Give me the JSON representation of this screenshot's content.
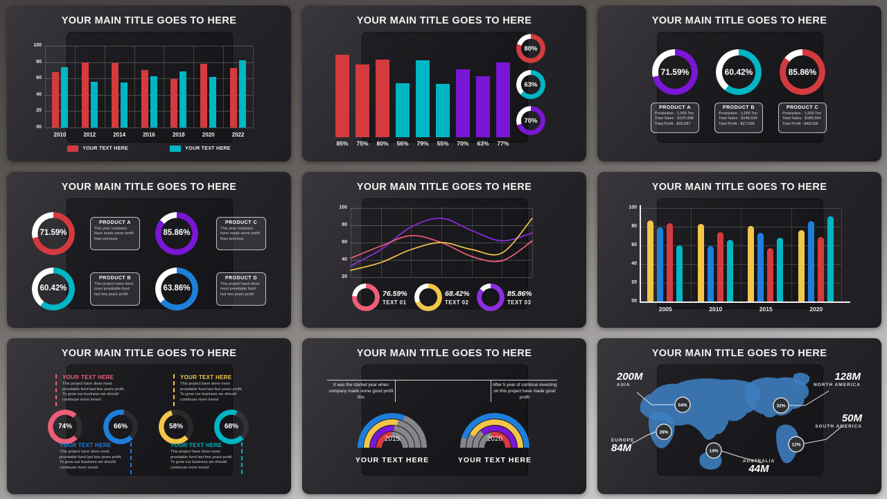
{
  "palette": {
    "red": "#d53a3e",
    "teal": "#00b6c4",
    "purple": "#7a16d6",
    "purple_line": "#8b2fe0",
    "blue": "#1e7fdb",
    "yellow": "#f3c64a",
    "pink": "#ef5e78",
    "gray": "#85868a",
    "white": "#ffffff",
    "map_blue": "#3d7ec0"
  },
  "slides": [
    {
      "name": "grouped-bar-chart",
      "title": "YOUR MAIN TITLE GOES TO HERE",
      "chart_data": {
        "type": "bar",
        "categories": [
          "2010",
          "2012",
          "2014",
          "2016",
          "2018",
          "2020",
          "2022"
        ],
        "yticks": [
          "100",
          "80",
          "60",
          "40",
          "20",
          "00"
        ],
        "ylim": [
          0,
          100
        ],
        "grid": true,
        "legend_position": "bottom",
        "series": [
          {
            "name": "YOUR TEXT HERE",
            "color": "#d53a3e",
            "values": [
              68,
              80,
              79,
              70,
              59,
              78,
              73
            ]
          },
          {
            "name": "YOUR TEXT HERE",
            "color": "#00b6c4",
            "values": [
              74,
              56,
              55,
              63,
              69,
              62,
              82
            ]
          }
        ]
      }
    },
    {
      "name": "percent-bar-chart",
      "title": "YOUR MAIN TITLE GOES TO HERE",
      "chart_data": {
        "type": "bar",
        "labels": [
          "85%",
          "75%",
          "80%",
          "56%",
          "79%",
          "55%",
          "70%",
          "63%",
          "77%"
        ],
        "values": [
          85,
          75,
          80,
          56,
          79,
          55,
          70,
          63,
          77
        ],
        "colors": [
          "#d53a3e",
          "#d53a3e",
          "#d53a3e",
          "#00b6c4",
          "#00b6c4",
          "#00b6c4",
          "#7a16d6",
          "#7a16d6",
          "#7a16d6"
        ]
      },
      "donuts": [
        {
          "label": "80%",
          "value": 80,
          "color": "#d53a3e"
        },
        {
          "label": "63%",
          "value": 63,
          "color": "#00b6c4"
        },
        {
          "label": "70%",
          "value": 70,
          "color": "#7a16d6"
        }
      ]
    },
    {
      "name": "product-donut-rings",
      "title": "YOUR MAIN TITLE GOES TO HERE",
      "donuts": [
        {
          "label": "71.59%",
          "value": 71.59,
          "color": "#7a16d6"
        },
        {
          "label": "60.42%",
          "value": 60.42,
          "color": "#00b6c4"
        },
        {
          "label": "85.86%",
          "value": 85.86,
          "color": "#d53a3e"
        }
      ],
      "products": [
        {
          "name": "PRODUCT A",
          "lines": [
            "Production - 1,000 Ton",
            "Total Sales - $125,908",
            "Total Profit - $35,987"
          ]
        },
        {
          "name": "PRODUCT B",
          "lines": [
            "Production - 1,000 Ton",
            "Total Sales - $148,534",
            "Total Profit - $27,598"
          ]
        },
        {
          "name": "PRODUCT C",
          "lines": [
            "Production - 1,000 Ton",
            "Total Sales - $189,564",
            "Total Profit - $48,568"
          ]
        }
      ]
    },
    {
      "name": "four-donut-products",
      "title": "YOUR MAIN TITLE GOES TO HERE",
      "items": [
        {
          "label": "71.59%",
          "value": 71.59,
          "color": "#d53a3e",
          "product": "PRODUCT A",
          "text": "This year company have made some profit than previous"
        },
        {
          "label": "85.86%",
          "value": 85.86,
          "color": "#7a16d6",
          "product": "PRODUCT C",
          "text": "This year company have made some profit than previous"
        },
        {
          "label": "60.42%",
          "value": 60.42,
          "color": "#00b6c4",
          "product": "PRODUCT B",
          "text": "This project have done most proeitable fund last few years profit"
        },
        {
          "label": "63.86%",
          "value": 63.86,
          "color": "#1e7fdb",
          "product": "PRODUCT D",
          "text": "This project have done most proeitable fund last few years profit"
        }
      ]
    },
    {
      "name": "line-chart-donuts",
      "title": "YOUR MAIN TITLE GOES TO HERE",
      "chart_data": {
        "type": "line",
        "yticks": [
          "100",
          "80",
          "60",
          "40",
          "20"
        ],
        "ylim": [
          20,
          100
        ],
        "grid": true,
        "series": [
          {
            "name": "line-purple",
            "color": "#8b2fe0",
            "values": [
              33,
              52,
              78,
              88,
              74,
              62,
              71
            ]
          },
          {
            "name": "line-pink",
            "color": "#ef5e78",
            "values": [
              42,
              56,
              68,
              60,
              44,
              39,
              62
            ]
          },
          {
            "name": "line-yellow",
            "color": "#f3c64a",
            "values": [
              28,
              37,
              52,
              60,
              52,
              48,
              88
            ]
          }
        ]
      },
      "donuts": [
        {
          "label": "76.59%",
          "value": 76.59,
          "sub": "TEXT 01",
          "color": "#ef5e78"
        },
        {
          "label": "68.42%",
          "value": 68.42,
          "sub": "TEXT 02",
          "color": "#f3c64a"
        },
        {
          "label": "85.86%",
          "value": 85.86,
          "sub": "TEXT 03",
          "color": "#8b2fe0"
        }
      ]
    },
    {
      "name": "grouped-rounded-bars",
      "title": "YOUR MAIN TITLE GOES TO HERE",
      "chart_data": {
        "type": "bar",
        "categories": [
          "2005",
          "2010",
          "2015",
          "2020"
        ],
        "yticks": [
          "100",
          "80",
          "60",
          "40",
          "20",
          "00"
        ],
        "ylim": [
          0,
          100
        ],
        "grid": true,
        "series": [
          {
            "name": "series-yellow",
            "color": "#f3c64a",
            "values": [
              87,
              83,
              81,
              76
            ]
          },
          {
            "name": "series-blue",
            "color": "#1e7fdb",
            "values": [
              79,
              59,
              73,
              86
            ]
          },
          {
            "name": "series-red",
            "color": "#d53a3e",
            "values": [
              84,
              74,
              57,
              69
            ]
          },
          {
            "name": "series-teal",
            "color": "#00b6c4",
            "values": [
              60,
              66,
              68,
              91
            ]
          }
        ]
      }
    },
    {
      "name": "arc-gauges-text",
      "title": "YOUR MAIN TITLE GOES TO HERE",
      "gauges": [
        {
          "label": "74%",
          "value": 74,
          "color": "#ef5e78"
        },
        {
          "label": "66%",
          "value": 66,
          "color": "#1e7fdb"
        },
        {
          "label": "58%",
          "value": 58,
          "color": "#f3c64a"
        },
        {
          "label": "68%",
          "value": 68,
          "color": "#00b6c4"
        }
      ],
      "blocks": [
        {
          "heading": "YOUR TEXT HERE",
          "color": "#ef5e78",
          "text": "This project have done most proeitable fund last few years profit. To grow our business we should continuse more invest"
        },
        {
          "heading": "YOUR TEXT HERE",
          "color": "#f3c64a",
          "text": "This project have done most proeitable fund last few years profit. To grow our business we should continuse more invest"
        },
        {
          "heading": "YOUR TEXT HERE",
          "color": "#1e7fdb",
          "text": "This project have done most proeitable fund last few years profit. To grow our business we should continuse more invest"
        },
        {
          "heading": "YOUR TEXT HERE",
          "color": "#00b6c4",
          "text": "This project have done most proeitable fund last few years profit. To grow our business we should continuse more invest"
        }
      ]
    },
    {
      "name": "half-ring-years",
      "title": "YOUR MAIN TITLE GOES TO HERE",
      "gauges": [
        {
          "year": "2015",
          "caption": "YOUR TEXT HERE",
          "fill_from": "left",
          "note": "It was the started year when company made some good profit this",
          "rings": [
            {
              "color": "#1e7fdb",
              "frac": 0.62
            },
            {
              "color": "#f3c64a",
              "frac": 0.57
            },
            {
              "color": "#7a16d6",
              "frac": 0.53
            },
            {
              "color": "#d53a3e",
              "frac": 0.48
            }
          ]
        },
        {
          "year": "2020",
          "caption": "YOUR TEXT HERE",
          "fill_from": "right",
          "note": "After 5 year of continue investing on this project have made good profit",
          "rings": [
            {
              "color": "#1e7fdb",
              "frac": 0.9
            },
            {
              "color": "#f3c64a",
              "frac": 0.84
            },
            {
              "color": "#7a16d6",
              "frac": 0.72
            },
            {
              "color": "#d53a3e",
              "frac": 0.58
            }
          ]
        }
      ]
    },
    {
      "name": "world-map-stats",
      "title": "YOUR MAIN TITLE GOES TO HERE",
      "regions": [
        {
          "name": "ASIA",
          "value": "200M",
          "pct": "54%"
        },
        {
          "name": "NORTH AMERICA",
          "value": "128M",
          "pct": "32%"
        },
        {
          "name": "SOUTH AMERICA",
          "value": "50M",
          "pct": "12%"
        },
        {
          "name": "EUROPE",
          "value": "84M",
          "pct": "28%"
        },
        {
          "name": "AUSTRALIA",
          "value": "44M",
          "pct": "14%"
        }
      ]
    }
  ]
}
